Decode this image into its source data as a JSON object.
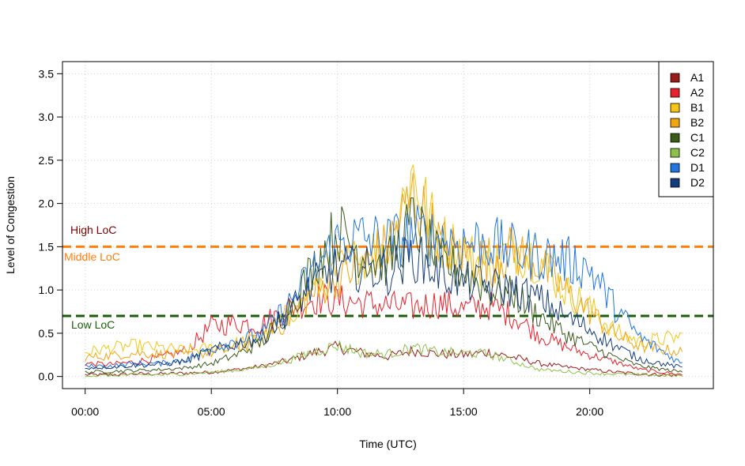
{
  "chart_data": {
    "type": "line",
    "xlabel": "Time (UTC)",
    "ylabel": "Level of Congestion",
    "x_tick_labels": [
      "00:00",
      "05:00",
      "10:00",
      "15:00",
      "20:00"
    ],
    "x_tick_hours": [
      0,
      5,
      10,
      15,
      20
    ],
    "y_ticks": [
      0.0,
      0.5,
      1.0,
      1.5,
      2.0,
      2.5,
      3.0,
      3.5
    ],
    "y_tick_labels": [
      "0.0",
      "0.5",
      "1.0",
      "1.5",
      "2.0",
      "2.5",
      "3.0",
      "3.5"
    ],
    "xlim": [
      -0.9,
      24.9
    ],
    "ylim": [
      -0.14,
      3.64
    ],
    "grid": true,
    "legend_position": "top-right",
    "thresholds": [
      {
        "label": "High LoC",
        "color": "#7b0000",
        "line": false
      },
      {
        "label": "Middle LoC",
        "value": 1.5,
        "color": "#ff7f0e",
        "line": true
      },
      {
        "label": "Low LoC",
        "value": 0.7,
        "color": "#1a5e0a",
        "line": true
      }
    ],
    "series": [
      {
        "name": "A1",
        "color": "#9b1b1b",
        "x": [
          0,
          1,
          2,
          3,
          4,
          5,
          6,
          7,
          8,
          9,
          10,
          11,
          12,
          13,
          14,
          15,
          16,
          17,
          18,
          19,
          20,
          21,
          22,
          23.7
        ],
        "y": [
          0.02,
          0.02,
          0.03,
          0.03,
          0.04,
          0.05,
          0.08,
          0.12,
          0.18,
          0.27,
          0.34,
          0.27,
          0.23,
          0.3,
          0.26,
          0.25,
          0.28,
          0.22,
          0.15,
          0.11,
          0.08,
          0.05,
          0.03,
          0.01
        ]
      },
      {
        "name": "A2",
        "color": "#e8202b",
        "x": [
          0,
          1,
          2,
          3,
          4,
          5,
          6,
          7,
          8,
          9,
          10,
          11,
          12,
          13,
          14,
          15,
          16,
          17,
          18,
          19,
          20,
          21,
          22,
          23.7
        ],
        "y": [
          0.15,
          0.14,
          0.17,
          0.22,
          0.3,
          0.58,
          0.62,
          0.6,
          0.78,
          0.9,
          0.88,
          0.85,
          0.82,
          0.8,
          0.85,
          0.78,
          0.82,
          0.7,
          0.48,
          0.35,
          0.25,
          0.17,
          0.08,
          0.02
        ]
      },
      {
        "name": "B1",
        "color": "#f5c518",
        "x": [
          0,
          1,
          2,
          3,
          4,
          5,
          6,
          7,
          8,
          9,
          10,
          11,
          12,
          13,
          14,
          15,
          16,
          17,
          18,
          19,
          20,
          21,
          22,
          23.7
        ],
        "y": [
          0.28,
          0.33,
          0.36,
          0.33,
          0.3,
          0.33,
          0.38,
          0.45,
          0.7,
          1.0,
          1.22,
          1.4,
          1.55,
          2.35,
          1.6,
          1.45,
          1.25,
          1.5,
          1.35,
          1.0,
          0.8,
          0.52,
          0.4,
          0.46
        ]
      },
      {
        "name": "B2",
        "color": "#f2a512",
        "x": [
          0,
          1,
          2,
          3,
          4,
          5,
          6,
          7,
          8,
          9,
          10,
          11,
          12,
          13,
          14,
          15,
          16,
          17,
          18,
          19,
          20,
          21,
          22,
          23.7
        ],
        "y": [
          0.22,
          0.24,
          0.27,
          0.26,
          0.25,
          0.27,
          0.33,
          0.42,
          0.65,
          0.95,
          1.15,
          1.3,
          1.5,
          2.1,
          1.55,
          1.4,
          1.35,
          1.45,
          1.3,
          1.0,
          0.75,
          0.48,
          0.35,
          0.28
        ]
      },
      {
        "name": "C1",
        "color": "#3a5a1a",
        "x": [
          0,
          1,
          2,
          3,
          4,
          5,
          6,
          7,
          8,
          9,
          10,
          11,
          12,
          13,
          14,
          15,
          16,
          17,
          18,
          19,
          20,
          21,
          22,
          23.7
        ],
        "y": [
          0.05,
          0.06,
          0.07,
          0.08,
          0.1,
          0.15,
          0.25,
          0.4,
          0.75,
          1.25,
          1.7,
          1.4,
          1.3,
          1.8,
          1.35,
          1.2,
          1.0,
          0.95,
          0.7,
          0.5,
          0.35,
          0.22,
          0.12,
          0.05
        ]
      },
      {
        "name": "C2",
        "color": "#8cc24a",
        "x": [
          0,
          1,
          2,
          3,
          4,
          5,
          6,
          7,
          8,
          9,
          10,
          11,
          12,
          13,
          14,
          15,
          16,
          17,
          18,
          19,
          20,
          21,
          22,
          23.7
        ],
        "y": [
          0.01,
          0.01,
          0.02,
          0.02,
          0.03,
          0.05,
          0.07,
          0.11,
          0.18,
          0.28,
          0.36,
          0.27,
          0.26,
          0.33,
          0.28,
          0.27,
          0.26,
          0.17,
          0.08,
          0.06,
          0.04,
          0.03,
          0.02,
          0.01
        ]
      },
      {
        "name": "D1",
        "color": "#2176e0",
        "x": [
          0,
          1,
          2,
          3,
          4,
          5,
          6,
          7,
          8,
          9,
          10,
          11,
          12,
          13,
          14,
          15,
          16,
          17,
          18,
          19,
          20,
          21,
          22,
          23.7
        ],
        "y": [
          0.12,
          0.12,
          0.15,
          0.15,
          0.2,
          0.32,
          0.42,
          0.48,
          0.8,
          1.2,
          1.55,
          1.6,
          1.55,
          1.65,
          1.6,
          1.55,
          1.55,
          1.45,
          1.4,
          1.35,
          1.25,
          0.8,
          0.45,
          0.14
        ]
      },
      {
        "name": "D2",
        "color": "#143c7a",
        "x": [
          0,
          1,
          2,
          3,
          4,
          5,
          6,
          7,
          8,
          9,
          10,
          11,
          12,
          13,
          14,
          15,
          16,
          17,
          18,
          19,
          20,
          21,
          22,
          23.7
        ],
        "y": [
          0.1,
          0.11,
          0.13,
          0.14,
          0.18,
          0.3,
          0.38,
          0.45,
          0.72,
          1.05,
          1.25,
          1.25,
          1.2,
          1.4,
          1.2,
          1.1,
          1.05,
          1.0,
          0.9,
          0.7,
          0.55,
          0.35,
          0.2,
          0.1
        ]
      }
    ]
  }
}
